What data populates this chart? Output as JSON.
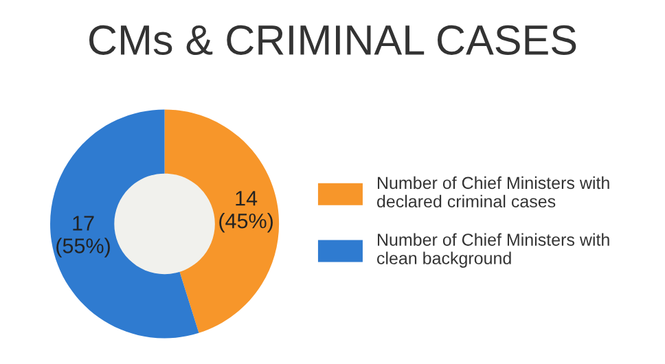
{
  "chart_data": {
    "type": "donut",
    "title": "CMs & CRIMINAL CASES",
    "categories": [
      "Number of Chief Ministers with\ndeclared criminal cases",
      "Number of Chief Ministers with\nclean background"
    ],
    "values": [
      14,
      17
    ],
    "colors": [
      "#f7962a",
      "#2f7bd0"
    ],
    "value_labels": [
      "14\n(45%)",
      "17\n(55%)"
    ],
    "legend": "right"
  }
}
